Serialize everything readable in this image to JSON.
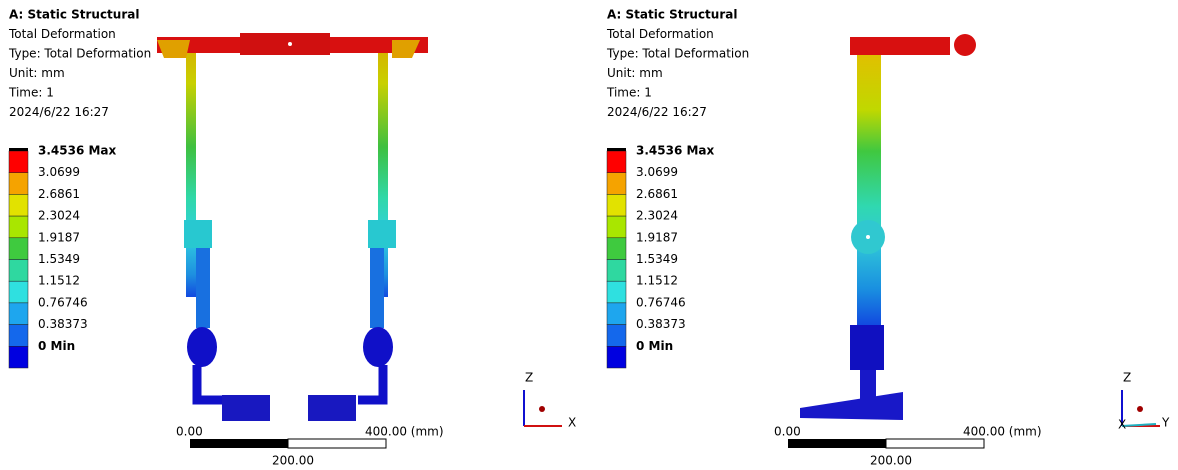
{
  "panels": [
    {
      "title": "A: Static Structural",
      "lines": [
        "Total Deformation",
        "Type: Total Deformation",
        "Unit: mm",
        "Time: 1",
        "2024/6/22 16:27"
      ],
      "legend": {
        "labels": [
          "3.4536 Max",
          "3.0699",
          "2.6861",
          "2.3024",
          "1.9187",
          "1.5349",
          "1.1512",
          "0.76746",
          "0.38373",
          "0 Min"
        ],
        "colors": [
          "#ff0000",
          "#f5a300",
          "#e2e200",
          "#a9e600",
          "#3fca3f",
          "#2fd8a0",
          "#2fe0e0",
          "#1ea6ee",
          "#1468ec",
          "#0000e0"
        ]
      },
      "scale": {
        "start": "0.00",
        "end": "400.00 (mm)",
        "mid": "200.00"
      },
      "axes": [
        "Z",
        "X"
      ]
    },
    {
      "title": "A: Static Structural",
      "lines": [
        "Total Deformation",
        "Type: Total Deformation",
        "Unit: mm",
        "Time: 1",
        "2024/6/22 16:27"
      ],
      "legend": {
        "labels": [
          "3.4536 Max",
          "3.0699",
          "2.6861",
          "2.3024",
          "1.9187",
          "1.5349",
          "1.1512",
          "0.76746",
          "0.38373",
          "0 Min"
        ],
        "colors": [
          "#ff0000",
          "#f5a300",
          "#e2e200",
          "#a9e600",
          "#3fca3f",
          "#2fd8a0",
          "#2fe0e0",
          "#1ea6ee",
          "#1468ec",
          "#0000e0"
        ]
      },
      "scale": {
        "start": "0.00",
        "end": "400.00 (mm)",
        "mid": "200.00"
      },
      "axes": [
        "Z",
        "Y",
        "X"
      ]
    }
  ]
}
